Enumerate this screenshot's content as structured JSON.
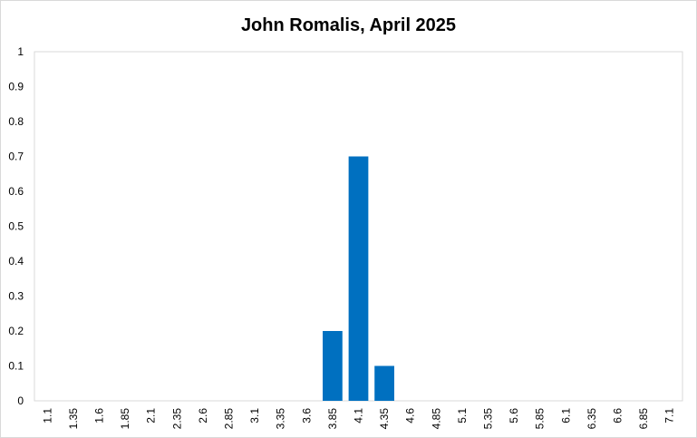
{
  "chart_data": {
    "type": "bar",
    "title": "John Romalis, April 2025",
    "xlabel": "",
    "ylabel": "",
    "categories": [
      "1.1",
      "1.35",
      "1.6",
      "1.85",
      "2.1",
      "2.35",
      "2.6",
      "2.85",
      "3.1",
      "3.35",
      "3.6",
      "3.85",
      "4.1",
      "4.35",
      "4.6",
      "4.85",
      "5.1",
      "5.35",
      "5.6",
      "5.85",
      "6.1",
      "6.35",
      "6.6",
      "6.85",
      "7.1"
    ],
    "values": [
      0,
      0,
      0,
      0,
      0,
      0,
      0,
      0,
      0,
      0,
      0,
      0.2,
      0.7,
      0.1,
      0,
      0,
      0,
      0,
      0,
      0,
      0,
      0,
      0,
      0,
      0
    ],
    "ylim": [
      0,
      1
    ],
    "yticks": [
      "0",
      "0.1",
      "0.2",
      "0.3",
      "0.4",
      "0.5",
      "0.6",
      "0.7",
      "0.8",
      "0.9",
      "1"
    ],
    "grid": false,
    "legend": "none",
    "bar_color": "#0070C0",
    "axis_color": "#d9d9d9"
  }
}
